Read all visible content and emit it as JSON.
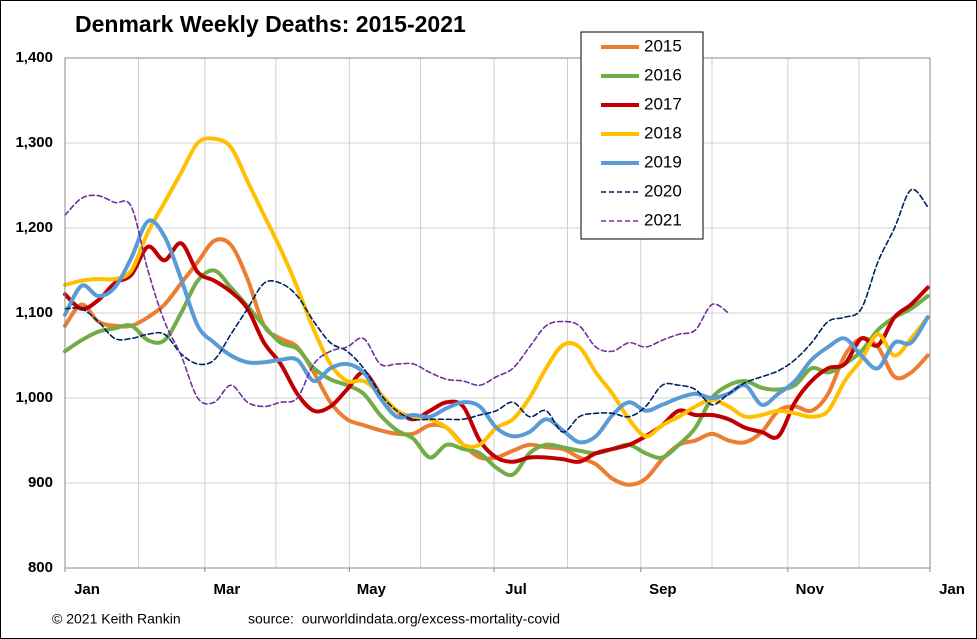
{
  "chart_data": {
    "type": "line",
    "title": "Denmark Weekly Deaths: 2015-2021",
    "credit": "© 2021 Keith Rankin",
    "source": "source:  ourworldindata.org/excess-mortality-covid",
    "x": [
      0,
      1,
      2,
      3,
      4,
      5,
      6,
      7,
      8,
      9,
      10,
      11,
      12,
      13,
      14,
      15,
      16,
      17,
      18,
      19,
      20,
      21,
      22,
      23,
      24,
      25,
      26,
      27,
      28,
      29,
      30,
      31,
      32,
      33,
      34,
      35,
      36,
      37,
      38,
      39,
      40,
      41,
      42,
      43,
      44,
      45,
      46,
      47,
      48,
      49,
      50,
      51,
      52
    ],
    "xlim": [
      0,
      52.14
    ],
    "xticks": [
      {
        "value": 0,
        "label": "Jan"
      },
      {
        "value": 8.43,
        "label": "Mar"
      },
      {
        "value": 17.14,
        "label": "May"
      },
      {
        "value": 25.86,
        "label": "Jul"
      },
      {
        "value": 34.71,
        "label": "Sep"
      },
      {
        "value": 43.57,
        "label": "Nov"
      },
      {
        "value": 52.14,
        "label": "Jan"
      }
    ],
    "xgrid": [
      0,
      4.43,
      8.43,
      12.71,
      17.14,
      21.43,
      25.86,
      30.29,
      34.71,
      39,
      43.57,
      47.86,
      52.14
    ],
    "ylim": [
      800,
      1400
    ],
    "yticks": [
      800,
      900,
      {
        "value": 1000,
        "label": "1,000"
      },
      {
        "value": 1100,
        "label": "1,100"
      },
      {
        "value": 1200,
        "label": "1,200"
      },
      {
        "value": 1300,
        "label": "1,300"
      },
      {
        "value": 1400,
        "label": "1,400"
      }
    ],
    "grid": true,
    "legend": "top-right",
    "series": [
      {
        "name": "2015",
        "color": "#ed7d31",
        "dash": false,
        "values": [
          1085,
          1110,
          1090,
          1085,
          1085,
          1095,
          1110,
          1135,
          1160,
          1185,
          1180,
          1140,
          1085,
          1070,
          1060,
          1030,
          995,
          975,
          968,
          962,
          958,
          958,
          968,
          965,
          945,
          930,
          930,
          938,
          945,
          942,
          940,
          930,
          922,
          905,
          898,
          905,
          928,
          945,
          950,
          958,
          950,
          948,
          960,
          985,
          990,
          985,
          1005,
          1050,
          1070,
          1060,
          1025,
          1030,
          1050
        ]
      },
      {
        "name": "2016",
        "color": "#70ad47",
        "dash": false,
        "values": [
          1055,
          1068,
          1078,
          1082,
          1085,
          1068,
          1068,
          1100,
          1138,
          1150,
          1130,
          1108,
          1085,
          1065,
          1058,
          1035,
          1022,
          1015,
          1005,
          980,
          962,
          952,
          930,
          945,
          940,
          935,
          918,
          910,
          935,
          945,
          942,
          938,
          935,
          940,
          945,
          935,
          930,
          945,
          965,
          1000,
          1015,
          1020,
          1012,
          1010,
          1015,
          1035,
          1030,
          1040,
          1055,
          1080,
          1095,
          1105,
          1120
        ]
      },
      {
        "name": "2017",
        "color": "#c00000",
        "dash": false,
        "values": [
          1122,
          1105,
          1115,
          1135,
          1145,
          1178,
          1162,
          1182,
          1148,
          1138,
          1125,
          1105,
          1065,
          1040,
          1005,
          985,
          990,
          1010,
          1030,
          1005,
          985,
          975,
          985,
          995,
          990,
          950,
          930,
          925,
          930,
          930,
          928,
          925,
          935,
          940,
          945,
          955,
          968,
          985,
          980,
          980,
          975,
          965,
          960,
          955,
          995,
          1020,
          1035,
          1040,
          1070,
          1062,
          1095,
          1110,
          1130
        ]
      },
      {
        "name": "2018",
        "color": "#ffc000",
        "dash": false,
        "values": [
          1133,
          1138,
          1140,
          1140,
          1150,
          1195,
          1230,
          1265,
          1300,
          1305,
          1295,
          1255,
          1215,
          1175,
          1130,
          1080,
          1040,
          1020,
          1020,
          1005,
          985,
          978,
          975,
          965,
          945,
          945,
          965,
          975,
          1000,
          1035,
          1062,
          1060,
          1030,
          1005,
          975,
          955,
          968,
          978,
          990,
          998,
          990,
          978,
          980,
          985,
          982,
          978,
          985,
          1020,
          1045,
          1075,
          1050,
          1070,
          1095
        ]
      },
      {
        "name": "2019",
        "color": "#5b9bd5",
        "dash": false,
        "values": [
          1098,
          1132,
          1120,
          1130,
          1165,
          1208,
          1190,
          1140,
          1085,
          1065,
          1050,
          1042,
          1042,
          1045,
          1045,
          1020,
          1035,
          1040,
          1030,
          1000,
          978,
          980,
          978,
          988,
          995,
          990,
          965,
          955,
          960,
          975,
          962,
          948,
          955,
          980,
          995,
          985,
          992,
          1000,
          1005,
          1000,
          1005,
          1015,
          992,
          1005,
          1020,
          1045,
          1060,
          1070,
          1050,
          1035,
          1065,
          1065,
          1095
        ]
      },
      {
        "name": "2020",
        "color": "#002060",
        "dash": true,
        "values": [
          1105,
          1105,
          1090,
          1070,
          1070,
          1075,
          1075,
          1052,
          1040,
          1045,
          1075,
          1105,
          1135,
          1135,
          1120,
          1090,
          1065,
          1055,
          1035,
          1005,
          985,
          975,
          975,
          975,
          975,
          980,
          985,
          995,
          978,
          985,
          960,
          978,
          982,
          982,
          978,
          990,
          1015,
          1015,
          1010,
          992,
          1005,
          1018,
          1025,
          1032,
          1045,
          1065,
          1090,
          1095,
          1105,
          1160,
          1200,
          1245,
          1225
        ]
      },
      {
        "name": "2021",
        "color": "#7030a0",
        "dash": true,
        "values": [
          1215,
          1235,
          1238,
          1230,
          1225,
          1150,
          1090,
          1050,
          1000,
          995,
          1015,
          995,
          990,
          995,
          1000,
          1040,
          1055,
          1060,
          1070,
          1040,
          1040,
          1040,
          1030,
          1022,
          1020,
          1015,
          1025,
          1035,
          1060,
          1085,
          1090,
          1085,
          1060,
          1055,
          1065,
          1060,
          1068,
          1075,
          1080,
          1110,
          1100,
          null,
          null,
          null,
          null,
          null,
          null,
          null,
          null,
          null,
          null,
          null,
          null
        ]
      }
    ]
  }
}
